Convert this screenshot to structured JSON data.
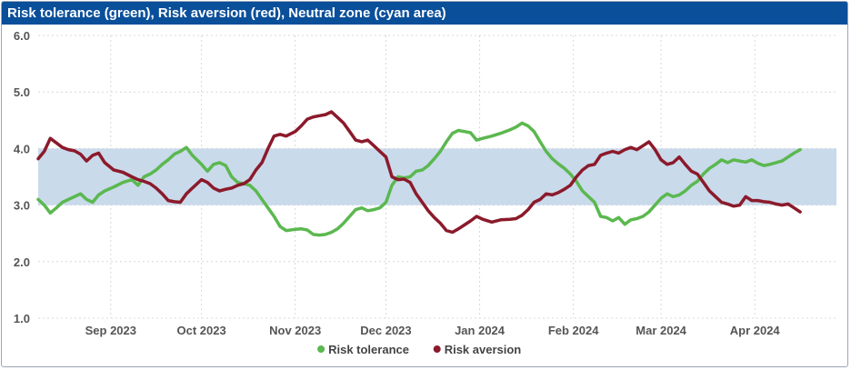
{
  "chart_data": {
    "type": "line",
    "title": "Risk tolerance (green), Risk aversion (red), Neutral zone (cyan area)",
    "ylim": [
      1.0,
      6.0
    ],
    "y_ticks": [
      "1.0",
      "2.0",
      "3.0",
      "4.0",
      "5.0",
      "6.0"
    ],
    "x_tick_labels": [
      "Sep 2023",
      "Oct 2023",
      "Nov 2023",
      "Dec 2023",
      "Jan 2024",
      "Feb 2024",
      "Mar 2024",
      "Apr 2024"
    ],
    "x_tick_dates": [
      "2023-09-01",
      "2023-10-01",
      "2023-11-01",
      "2023-12-01",
      "2024-01-01",
      "2024-02-01",
      "2024-03-01",
      "2024-04-01"
    ],
    "x_range": [
      "2023-08-08",
      "2024-04-28"
    ],
    "neutral_zone": [
      3.0,
      4.0
    ],
    "grid": true,
    "legend_position": "bottom-center",
    "colors": {
      "risk_tolerance": "#5bb84f",
      "risk_aversion": "#8b1a2b",
      "neutral_zone": "#c6d8ea",
      "title_bar": "#0a4f9a"
    },
    "series": [
      {
        "name": "Risk tolerance",
        "color": "#5bb84f",
        "points": [
          [
            "2023-08-08",
            3.1
          ],
          [
            "2023-08-10",
            3.0
          ],
          [
            "2023-08-12",
            2.86
          ],
          [
            "2023-08-14",
            2.95
          ],
          [
            "2023-08-16",
            3.05
          ],
          [
            "2023-08-18",
            3.1
          ],
          [
            "2023-08-20",
            3.15
          ],
          [
            "2023-08-22",
            3.2
          ],
          [
            "2023-08-24",
            3.1
          ],
          [
            "2023-08-26",
            3.05
          ],
          [
            "2023-08-28",
            3.18
          ],
          [
            "2023-08-30",
            3.25
          ],
          [
            "2023-09-02",
            3.32
          ],
          [
            "2023-09-05",
            3.4
          ],
          [
            "2023-09-08",
            3.45
          ],
          [
            "2023-09-10",
            3.35
          ],
          [
            "2023-09-12",
            3.5
          ],
          [
            "2023-09-14",
            3.55
          ],
          [
            "2023-09-16",
            3.62
          ],
          [
            "2023-09-18",
            3.72
          ],
          [
            "2023-09-20",
            3.8
          ],
          [
            "2023-09-22",
            3.9
          ],
          [
            "2023-09-24",
            3.95
          ],
          [
            "2023-09-26",
            4.02
          ],
          [
            "2023-09-28",
            3.88
          ],
          [
            "2023-10-01",
            3.72
          ],
          [
            "2023-10-03",
            3.6
          ],
          [
            "2023-10-05",
            3.72
          ],
          [
            "2023-10-07",
            3.75
          ],
          [
            "2023-10-09",
            3.7
          ],
          [
            "2023-10-11",
            3.5
          ],
          [
            "2023-10-13",
            3.4
          ],
          [
            "2023-10-15",
            3.38
          ],
          [
            "2023-10-17",
            3.35
          ],
          [
            "2023-10-19",
            3.25
          ],
          [
            "2023-10-21",
            3.1
          ],
          [
            "2023-10-23",
            2.95
          ],
          [
            "2023-10-25",
            2.8
          ],
          [
            "2023-10-27",
            2.62
          ],
          [
            "2023-10-29",
            2.55
          ],
          [
            "2023-11-01",
            2.57
          ],
          [
            "2023-11-03",
            2.58
          ],
          [
            "2023-11-05",
            2.56
          ],
          [
            "2023-11-07",
            2.48
          ],
          [
            "2023-11-09",
            2.47
          ],
          [
            "2023-11-11",
            2.48
          ],
          [
            "2023-11-13",
            2.52
          ],
          [
            "2023-11-15",
            2.58
          ],
          [
            "2023-11-17",
            2.68
          ],
          [
            "2023-11-19",
            2.8
          ],
          [
            "2023-11-21",
            2.92
          ],
          [
            "2023-11-23",
            2.95
          ],
          [
            "2023-11-25",
            2.9
          ],
          [
            "2023-11-27",
            2.92
          ],
          [
            "2023-11-29",
            2.95
          ],
          [
            "2023-12-01",
            3.05
          ],
          [
            "2023-12-03",
            3.35
          ],
          [
            "2023-12-05",
            3.5
          ],
          [
            "2023-12-07",
            3.48
          ],
          [
            "2023-12-09",
            3.5
          ],
          [
            "2023-12-11",
            3.6
          ],
          [
            "2023-12-13",
            3.62
          ],
          [
            "2023-12-15",
            3.7
          ],
          [
            "2023-12-17",
            3.82
          ],
          [
            "2023-12-19",
            3.95
          ],
          [
            "2023-12-21",
            4.12
          ],
          [
            "2023-12-23",
            4.27
          ],
          [
            "2023-12-25",
            4.32
          ],
          [
            "2023-12-27",
            4.3
          ],
          [
            "2023-12-29",
            4.28
          ],
          [
            "2023-12-31",
            4.15
          ],
          [
            "2024-01-02",
            4.18
          ],
          [
            "2024-01-05",
            4.22
          ],
          [
            "2024-01-08",
            4.27
          ],
          [
            "2024-01-11",
            4.33
          ],
          [
            "2024-01-13",
            4.38
          ],
          [
            "2024-01-15",
            4.45
          ],
          [
            "2024-01-17",
            4.4
          ],
          [
            "2024-01-19",
            4.3
          ],
          [
            "2024-01-21",
            4.12
          ],
          [
            "2024-01-23",
            3.95
          ],
          [
            "2024-01-25",
            3.82
          ],
          [
            "2024-01-27",
            3.73
          ],
          [
            "2024-01-29",
            3.65
          ],
          [
            "2024-01-31",
            3.55
          ],
          [
            "2024-02-02",
            3.42
          ],
          [
            "2024-02-04",
            3.25
          ],
          [
            "2024-02-06",
            3.15
          ],
          [
            "2024-02-08",
            3.05
          ],
          [
            "2024-02-10",
            2.8
          ],
          [
            "2024-02-12",
            2.78
          ],
          [
            "2024-02-14",
            2.72
          ],
          [
            "2024-02-16",
            2.78
          ],
          [
            "2024-02-18",
            2.66
          ],
          [
            "2024-02-20",
            2.74
          ],
          [
            "2024-02-22",
            2.76
          ],
          [
            "2024-02-24",
            2.8
          ],
          [
            "2024-02-26",
            2.88
          ],
          [
            "2024-02-28",
            3.0
          ],
          [
            "2024-03-01",
            3.12
          ],
          [
            "2024-03-03",
            3.2
          ],
          [
            "2024-03-05",
            3.15
          ],
          [
            "2024-03-07",
            3.18
          ],
          [
            "2024-03-09",
            3.25
          ],
          [
            "2024-03-11",
            3.35
          ],
          [
            "2024-03-13",
            3.42
          ],
          [
            "2024-03-15",
            3.55
          ],
          [
            "2024-03-17",
            3.65
          ],
          [
            "2024-03-19",
            3.72
          ],
          [
            "2024-03-21",
            3.8
          ],
          [
            "2024-03-23",
            3.75
          ],
          [
            "2024-03-25",
            3.8
          ],
          [
            "2024-03-27",
            3.78
          ],
          [
            "2024-03-29",
            3.76
          ],
          [
            "2024-03-31",
            3.8
          ],
          [
            "2024-04-02",
            3.74
          ],
          [
            "2024-04-04",
            3.7
          ],
          [
            "2024-04-06",
            3.72
          ],
          [
            "2024-04-08",
            3.75
          ],
          [
            "2024-04-10",
            3.78
          ],
          [
            "2024-04-12",
            3.85
          ],
          [
            "2024-04-14",
            3.92
          ],
          [
            "2024-04-16",
            3.98
          ]
        ]
      },
      {
        "name": "Risk aversion",
        "color": "#8b1a2b",
        "points": [
          [
            "2023-08-08",
            3.82
          ],
          [
            "2023-08-10",
            3.95
          ],
          [
            "2023-08-12",
            4.18
          ],
          [
            "2023-08-14",
            4.1
          ],
          [
            "2023-08-16",
            4.02
          ],
          [
            "2023-08-18",
            3.98
          ],
          [
            "2023-08-20",
            3.96
          ],
          [
            "2023-08-22",
            3.9
          ],
          [
            "2023-08-24",
            3.78
          ],
          [
            "2023-08-26",
            3.88
          ],
          [
            "2023-08-28",
            3.92
          ],
          [
            "2023-08-30",
            3.75
          ],
          [
            "2023-09-02",
            3.62
          ],
          [
            "2023-09-05",
            3.58
          ],
          [
            "2023-09-08",
            3.5
          ],
          [
            "2023-09-10",
            3.45
          ],
          [
            "2023-09-12",
            3.42
          ],
          [
            "2023-09-14",
            3.38
          ],
          [
            "2023-09-16",
            3.3
          ],
          [
            "2023-09-18",
            3.2
          ],
          [
            "2023-09-20",
            3.08
          ],
          [
            "2023-09-22",
            3.06
          ],
          [
            "2023-09-24",
            3.05
          ],
          [
            "2023-09-26",
            3.2
          ],
          [
            "2023-09-28",
            3.3
          ],
          [
            "2023-10-01",
            3.45
          ],
          [
            "2023-10-03",
            3.4
          ],
          [
            "2023-10-05",
            3.3
          ],
          [
            "2023-10-07",
            3.25
          ],
          [
            "2023-10-09",
            3.28
          ],
          [
            "2023-10-11",
            3.3
          ],
          [
            "2023-10-13",
            3.35
          ],
          [
            "2023-10-15",
            3.38
          ],
          [
            "2023-10-17",
            3.45
          ],
          [
            "2023-10-19",
            3.62
          ],
          [
            "2023-10-21",
            3.75
          ],
          [
            "2023-10-23",
            4.0
          ],
          [
            "2023-10-25",
            4.22
          ],
          [
            "2023-10-27",
            4.25
          ],
          [
            "2023-10-29",
            4.22
          ],
          [
            "2023-11-01",
            4.3
          ],
          [
            "2023-11-03",
            4.4
          ],
          [
            "2023-11-05",
            4.52
          ],
          [
            "2023-11-07",
            4.56
          ],
          [
            "2023-11-09",
            4.58
          ],
          [
            "2023-11-11",
            4.6
          ],
          [
            "2023-11-13",
            4.65
          ],
          [
            "2023-11-15",
            4.55
          ],
          [
            "2023-11-17",
            4.45
          ],
          [
            "2023-11-19",
            4.3
          ],
          [
            "2023-11-21",
            4.15
          ],
          [
            "2023-11-23",
            4.12
          ],
          [
            "2023-11-25",
            4.15
          ],
          [
            "2023-11-27",
            4.05
          ],
          [
            "2023-11-29",
            3.95
          ],
          [
            "2023-12-01",
            3.85
          ],
          [
            "2023-12-03",
            3.5
          ],
          [
            "2023-12-05",
            3.45
          ],
          [
            "2023-12-07",
            3.46
          ],
          [
            "2023-12-09",
            3.4
          ],
          [
            "2023-12-11",
            3.2
          ],
          [
            "2023-12-13",
            3.05
          ],
          [
            "2023-12-15",
            2.9
          ],
          [
            "2023-12-17",
            2.78
          ],
          [
            "2023-12-19",
            2.68
          ],
          [
            "2023-12-21",
            2.55
          ],
          [
            "2023-12-23",
            2.52
          ],
          [
            "2023-12-25",
            2.58
          ],
          [
            "2023-12-27",
            2.65
          ],
          [
            "2023-12-29",
            2.72
          ],
          [
            "2023-12-31",
            2.8
          ],
          [
            "2024-01-02",
            2.75
          ],
          [
            "2024-01-05",
            2.7
          ],
          [
            "2024-01-08",
            2.74
          ],
          [
            "2024-01-11",
            2.75
          ],
          [
            "2024-01-13",
            2.76
          ],
          [
            "2024-01-15",
            2.82
          ],
          [
            "2024-01-17",
            2.92
          ],
          [
            "2024-01-19",
            3.05
          ],
          [
            "2024-01-21",
            3.1
          ],
          [
            "2024-01-23",
            3.2
          ],
          [
            "2024-01-25",
            3.18
          ],
          [
            "2024-01-27",
            3.22
          ],
          [
            "2024-01-29",
            3.28
          ],
          [
            "2024-01-31",
            3.35
          ],
          [
            "2024-02-02",
            3.5
          ],
          [
            "2024-02-04",
            3.62
          ],
          [
            "2024-02-06",
            3.7
          ],
          [
            "2024-02-08",
            3.72
          ],
          [
            "2024-02-10",
            3.88
          ],
          [
            "2024-02-12",
            3.92
          ],
          [
            "2024-02-14",
            3.95
          ],
          [
            "2024-02-16",
            3.92
          ],
          [
            "2024-02-18",
            3.98
          ],
          [
            "2024-02-20",
            4.02
          ],
          [
            "2024-02-22",
            3.98
          ],
          [
            "2024-02-24",
            4.05
          ],
          [
            "2024-02-26",
            4.12
          ],
          [
            "2024-02-28",
            3.98
          ],
          [
            "2024-03-01",
            3.8
          ],
          [
            "2024-03-03",
            3.72
          ],
          [
            "2024-03-05",
            3.75
          ],
          [
            "2024-03-07",
            3.85
          ],
          [
            "2024-03-09",
            3.72
          ],
          [
            "2024-03-11",
            3.6
          ],
          [
            "2024-03-13",
            3.55
          ],
          [
            "2024-03-15",
            3.4
          ],
          [
            "2024-03-17",
            3.25
          ],
          [
            "2024-03-19",
            3.15
          ],
          [
            "2024-03-21",
            3.05
          ],
          [
            "2024-03-23",
            3.02
          ],
          [
            "2024-03-25",
            2.98
          ],
          [
            "2024-03-27",
            3.0
          ],
          [
            "2024-03-29",
            3.15
          ],
          [
            "2024-03-31",
            3.08
          ],
          [
            "2024-04-02",
            3.08
          ],
          [
            "2024-04-04",
            3.06
          ],
          [
            "2024-04-06",
            3.05
          ],
          [
            "2024-04-08",
            3.02
          ],
          [
            "2024-04-10",
            3.0
          ],
          [
            "2024-04-12",
            3.02
          ],
          [
            "2024-04-14",
            2.95
          ],
          [
            "2024-04-16",
            2.88
          ]
        ]
      }
    ]
  }
}
